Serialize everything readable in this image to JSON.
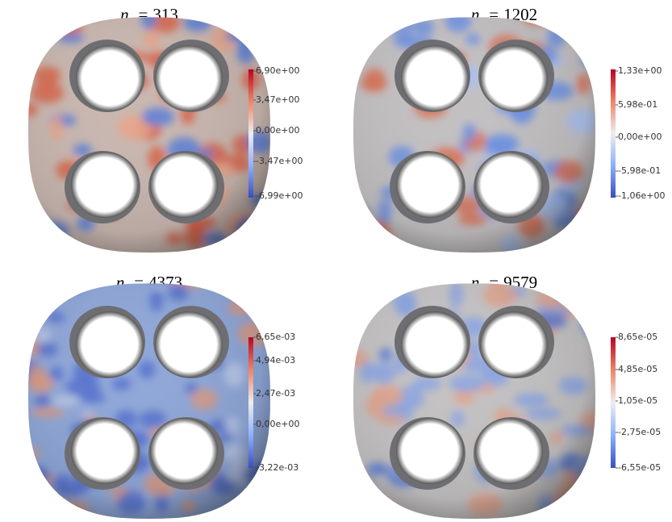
{
  "panels": [
    {
      "title": {
        "symbol": "n",
        "subscript": "s",
        "relation": "=",
        "value": "313"
      },
      "colorbar_labels": [
        "6,90e+00",
        "3,47e+00",
        "0,00e+00",
        "-3,47e+00",
        "-6,99e+00"
      ]
    },
    {
      "title": {
        "symbol": "n",
        "subscript": "s",
        "relation": "=",
        "value": "1202"
      },
      "colorbar_labels": [
        "1,33e+00",
        "5,98e-01",
        "0,00e+00",
        "-5,98e-01",
        "-1,06e+00"
      ]
    },
    {
      "title": {
        "symbol": "n",
        "subscript": "s",
        "relation": "=",
        "value": "4373"
      },
      "colorbar_labels": [
        "6,65e-03",
        "4,94e-03",
        "2,47e-03",
        "0,00e+00",
        "-3,22e-03"
      ]
    },
    {
      "title": {
        "symbol": "n",
        "subscript": "s",
        "relation": "=",
        "value": "9579"
      },
      "colorbar_labels": [
        "8,65e-05",
        "4,85e-05",
        "1,05e-05",
        "-2,75e-05",
        "-6,55e-05"
      ]
    }
  ]
}
